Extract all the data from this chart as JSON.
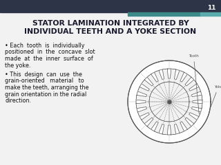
{
  "bg_color": "#f2f2f2",
  "title_line1": "STATOR LAMINATION INTEGRATED BY",
  "title_line2": "INDIVIDUAL TEETH AND A YOKE SECTION",
  "title_color": "#1a1a2e",
  "bullet1_lines": [
    "• Each  tooth  is  individually",
    "positioned  in  the  concave  slot",
    "made  at  the  inner  surface  of",
    "the yoke."
  ],
  "bullet2_lines": [
    "• This  design  can  use  the",
    "grain-oriented   material   to",
    "make the teeth, arranging the",
    "grain orientation in the radial",
    "direction."
  ],
  "slide_number": "11",
  "header_bg_color": "#2e3447",
  "header_teal1": "#3d8a8a",
  "header_teal2": "#5aacac",
  "label_tooth": "Tooth",
  "label_yoke": "Yoke",
  "diagram_line_color": "#555555",
  "num_teeth": 24
}
